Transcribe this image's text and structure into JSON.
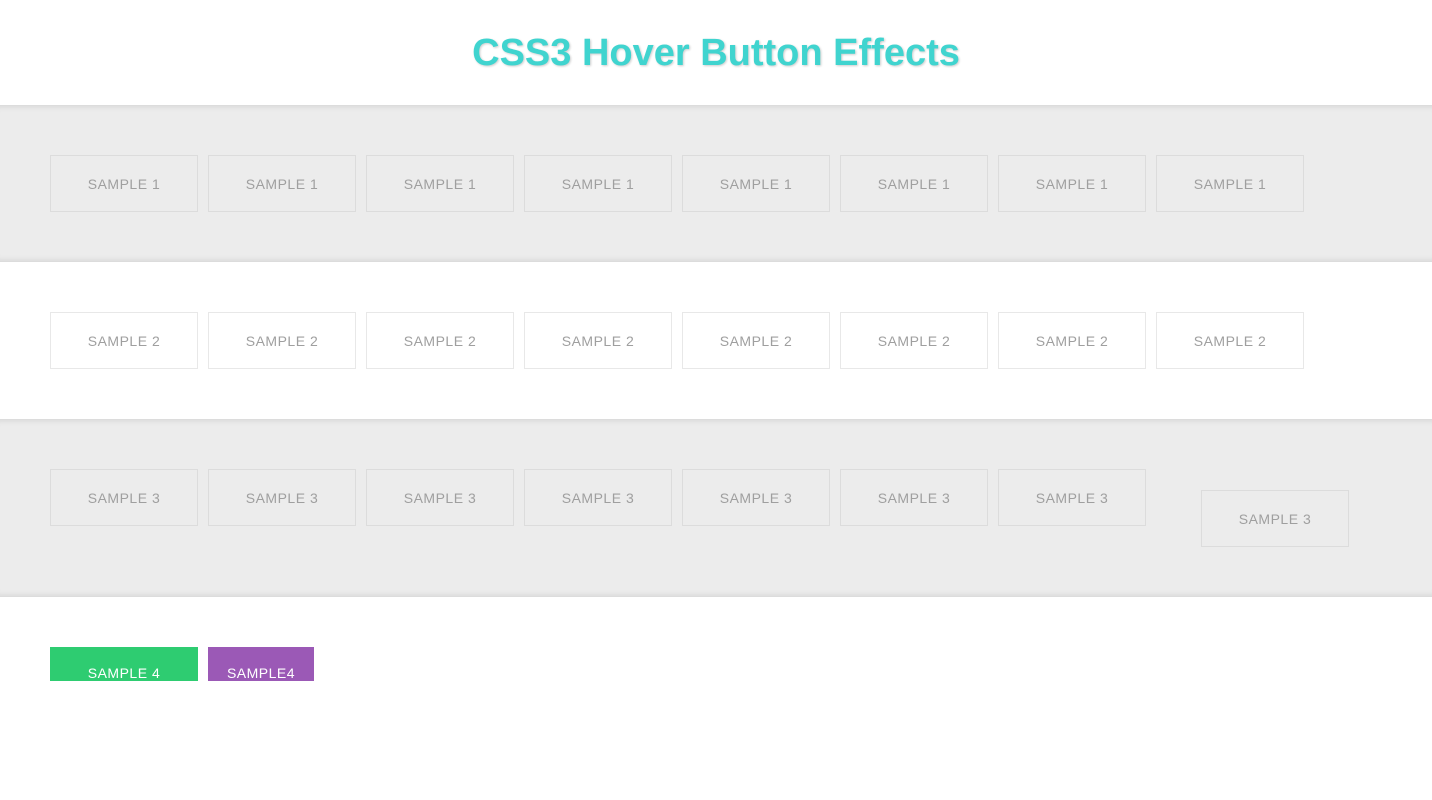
{
  "page": {
    "title": "CSS3 Hover Button Effects",
    "title_color": "#40d4cf",
    "title_fontsize": 38
  },
  "sections": [
    {
      "id": "section-1",
      "background": "#ececec",
      "button_label": "SAMPLE 1",
      "button_count": 8,
      "button_bg": "transparent",
      "button_border": "#dcdcdc",
      "button_text_color": "#9f9f9f"
    },
    {
      "id": "section-2",
      "background": "#ffffff",
      "button_label": "SAMPLE 2",
      "button_count": 8,
      "button_bg": "transparent",
      "button_border": "#e8e8e8",
      "button_text_color": "#9f9f9f"
    },
    {
      "id": "section-3",
      "background": "#ececec",
      "button_label": "SAMPLE 3",
      "button_count": 8,
      "button_bg": "transparent",
      "button_border": "#dcdcdc",
      "button_text_color": "#9f9f9f",
      "last_button_offset": true
    },
    {
      "id": "section-4",
      "background": "#ffffff",
      "buttons": [
        {
          "label": "SAMPLE 4",
          "bg": "#2ecc71",
          "text_color": "#ffffff"
        },
        {
          "label": "SAMPLE4",
          "bg": "#9b59b6",
          "text_color": "#ffffff"
        }
      ]
    }
  ],
  "labels": {
    "sample1": "SAMPLE 1",
    "sample2": "SAMPLE 2",
    "sample3": "SAMPLE 3",
    "sample4a": "SAMPLE 4",
    "sample4b": "SAMPLE4"
  }
}
